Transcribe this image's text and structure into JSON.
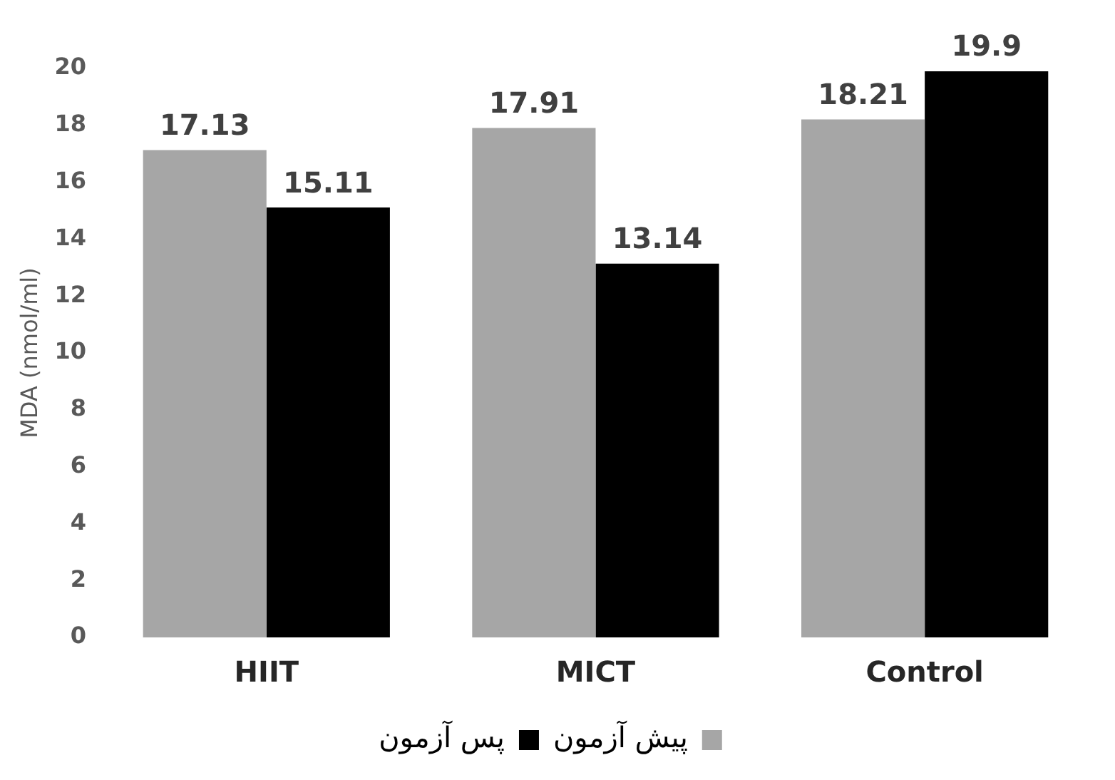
{
  "chart_data": {
    "type": "bar",
    "ylabel": "MDA (nmol/ml)",
    "categories": [
      "HIIT",
      "MICT",
      "Control"
    ],
    "series": [
      {
        "name": "پیش آزمون",
        "color": "#a6a6a6",
        "values": [
          17.13,
          17.91,
          18.21
        ]
      },
      {
        "name": "پس آزمون",
        "color": "#000000",
        "values": [
          15.11,
          13.14,
          19.9
        ]
      }
    ],
    "ylim": [
      0,
      20
    ],
    "yticks": [
      0,
      2,
      4,
      6,
      8,
      10,
      12,
      14,
      16,
      18,
      20
    ],
    "grid": false,
    "legend": "bottom",
    "data_labels": true
  }
}
